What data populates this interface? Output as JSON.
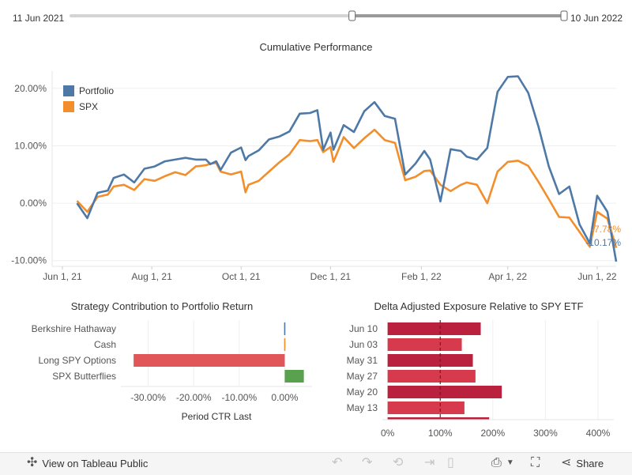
{
  "range_slider": {
    "start_label": "11 Jun 2021",
    "end_label": "10 Jun 2022",
    "selected_fraction": [
      0.57,
      1.0
    ]
  },
  "colors": {
    "portfolio": "#4e79a7",
    "spx": "#f28e2b",
    "ctr_negative": "#e15759",
    "ctr_positive": "#59a14f",
    "exposure_dark": "#b9213f",
    "exposure_light": "#d63a4c"
  },
  "chart_data": [
    {
      "type": "line",
      "title": "Cumulative Performance",
      "x_ticks": [
        "Jun 1, 21",
        "Aug 1, 21",
        "Oct 1, 21",
        "Dec 1, 21",
        "Feb 1, 22",
        "Apr 1, 22",
        "Jun 1, 22"
      ],
      "y_ticks": [
        "20.00%",
        "10.00%",
        "0.00%",
        "-10.00%"
      ],
      "ylim": [
        -11,
        23
      ],
      "xlim": [
        "2021-05-25",
        "2022-06-14"
      ],
      "legend_position": "top-left",
      "series": [
        {
          "name": "Portfolio",
          "end_label": "-10.17%",
          "points": [
            [
              "2021-06-11",
              0.0
            ],
            [
              "2021-06-18",
              -2.6
            ],
            [
              "2021-06-25",
              1.8
            ],
            [
              "2021-07-02",
              2.2
            ],
            [
              "2021-07-06",
              4.4
            ],
            [
              "2021-07-13",
              5.0
            ],
            [
              "2021-07-20",
              3.6
            ],
            [
              "2021-07-27",
              6.0
            ],
            [
              "2021-08-03",
              6.4
            ],
            [
              "2021-08-10",
              7.3
            ],
            [
              "2021-08-17",
              7.6
            ],
            [
              "2021-08-24",
              7.9
            ],
            [
              "2021-08-31",
              7.6
            ],
            [
              "2021-09-07",
              7.6
            ],
            [
              "2021-09-10",
              6.8
            ],
            [
              "2021-09-14",
              7.3
            ],
            [
              "2021-09-17",
              5.8
            ],
            [
              "2021-09-24",
              8.8
            ],
            [
              "2021-10-01",
              9.7
            ],
            [
              "2021-10-04",
              7.5
            ],
            [
              "2021-10-06",
              8.2
            ],
            [
              "2021-10-13",
              9.2
            ],
            [
              "2021-10-20",
              11.1
            ],
            [
              "2021-10-27",
              11.6
            ],
            [
              "2021-11-03",
              12.5
            ],
            [
              "2021-11-10",
              15.6
            ],
            [
              "2021-11-17",
              15.7
            ],
            [
              "2021-11-22",
              16.2
            ],
            [
              "2021-11-26",
              9.3
            ],
            [
              "2021-12-01",
              12.3
            ],
            [
              "2021-12-03",
              9.3
            ],
            [
              "2021-12-10",
              13.6
            ],
            [
              "2021-12-17",
              12.4
            ],
            [
              "2021-12-24",
              16.0
            ],
            [
              "2021-12-31",
              17.6
            ],
            [
              "2022-01-07",
              15.2
            ],
            [
              "2022-01-14",
              14.7
            ],
            [
              "2022-01-21",
              5.0
            ],
            [
              "2022-01-28",
              6.9
            ],
            [
              "2022-02-03",
              9.1
            ],
            [
              "2022-02-07",
              7.6
            ],
            [
              "2022-02-14",
              0.3
            ],
            [
              "2022-02-21",
              9.4
            ],
            [
              "2022-02-28",
              9.1
            ],
            [
              "2022-03-04",
              8.1
            ],
            [
              "2022-03-11",
              7.6
            ],
            [
              "2022-03-18",
              9.6
            ],
            [
              "2022-03-25",
              19.4
            ],
            [
              "2022-04-01",
              22.0
            ],
            [
              "2022-04-08",
              22.1
            ],
            [
              "2022-04-15",
              19.2
            ],
            [
              "2022-04-22",
              13.3
            ],
            [
              "2022-04-29",
              6.4
            ],
            [
              "2022-05-06",
              1.6
            ],
            [
              "2022-05-13",
              2.9
            ],
            [
              "2022-05-20",
              -3.7
            ],
            [
              "2022-05-27",
              -7.0
            ],
            [
              "2022-06-01",
              1.3
            ],
            [
              "2022-06-08",
              -1.5
            ],
            [
              "2022-06-14",
              -10.17
            ]
          ]
        },
        {
          "name": "SPX",
          "end_label": "-7.78%",
          "points": [
            [
              "2021-06-11",
              0.4
            ],
            [
              "2021-06-18",
              -1.5
            ],
            [
              "2021-06-25",
              1.1
            ],
            [
              "2021-07-02",
              1.5
            ],
            [
              "2021-07-06",
              2.9
            ],
            [
              "2021-07-13",
              3.2
            ],
            [
              "2021-07-20",
              2.3
            ],
            [
              "2021-07-27",
              4.2
            ],
            [
              "2021-08-03",
              3.9
            ],
            [
              "2021-08-10",
              4.7
            ],
            [
              "2021-08-17",
              5.4
            ],
            [
              "2021-08-24",
              4.9
            ],
            [
              "2021-08-31",
              6.4
            ],
            [
              "2021-09-07",
              6.6
            ],
            [
              "2021-09-10",
              6.9
            ],
            [
              "2021-09-14",
              7.0
            ],
            [
              "2021-09-17",
              5.5
            ],
            [
              "2021-09-24",
              5.0
            ],
            [
              "2021-10-01",
              5.5
            ],
            [
              "2021-10-04",
              1.9
            ],
            [
              "2021-10-06",
              3.2
            ],
            [
              "2021-10-13",
              3.9
            ],
            [
              "2021-10-20",
              5.5
            ],
            [
              "2021-10-27",
              7.1
            ],
            [
              "2021-11-03",
              8.5
            ],
            [
              "2021-11-10",
              11.0
            ],
            [
              "2021-11-17",
              10.8
            ],
            [
              "2021-11-22",
              11.0
            ],
            [
              "2021-11-26",
              8.9
            ],
            [
              "2021-12-01",
              9.8
            ],
            [
              "2021-12-03",
              7.2
            ],
            [
              "2021-12-10",
              11.5
            ],
            [
              "2021-12-17",
              9.6
            ],
            [
              "2021-12-24",
              11.3
            ],
            [
              "2021-12-31",
              12.8
            ],
            [
              "2022-01-07",
              11.0
            ],
            [
              "2022-01-14",
              10.5
            ],
            [
              "2022-01-21",
              4.0
            ],
            [
              "2022-01-28",
              4.6
            ],
            [
              "2022-02-03",
              5.6
            ],
            [
              "2022-02-07",
              5.7
            ],
            [
              "2022-02-14",
              3.2
            ],
            [
              "2022-02-21",
              2.1
            ],
            [
              "2022-02-28",
              3.2
            ],
            [
              "2022-03-04",
              3.6
            ],
            [
              "2022-03-11",
              3.2
            ],
            [
              "2022-03-18",
              0.0
            ],
            [
              "2022-03-25",
              5.5
            ],
            [
              "2022-04-01",
              7.2
            ],
            [
              "2022-04-08",
              7.4
            ],
            [
              "2022-04-15",
              6.5
            ],
            [
              "2022-04-22",
              3.7
            ],
            [
              "2022-04-29",
              0.7
            ],
            [
              "2022-05-06",
              -2.4
            ],
            [
              "2022-05-13",
              -2.5
            ],
            [
              "2022-05-20",
              -5.0
            ],
            [
              "2022-05-27",
              -7.6
            ],
            [
              "2022-06-01",
              -1.5
            ],
            [
              "2022-06-08",
              -2.7
            ],
            [
              "2022-06-14",
              -7.78
            ]
          ]
        }
      ]
    },
    {
      "type": "bar",
      "orientation": "horizontal",
      "title": "Strategy Contribution to Portfolio Return",
      "xlabel": "Period CTR Last",
      "categories": [
        "Berkshire Hathaway",
        "Cash",
        "Long SPY Options",
        "SPX Butterflies"
      ],
      "values": [
        -0.05,
        0.05,
        -33.2,
        4.2
      ],
      "x_ticks": [
        "-30.00%",
        "-20.00%",
        "-10.00%",
        "0.00%"
      ],
      "xlim": [
        -36,
        6
      ]
    },
    {
      "type": "bar",
      "orientation": "horizontal",
      "title": "Delta Adjusted Exposure Relative to SPY ETF",
      "categories": [
        "Jun 10",
        "Jun 03",
        "May 31",
        "May 27",
        "May 20",
        "May 13"
      ],
      "values": [
        177,
        141,
        162,
        167,
        217,
        146
      ],
      "partial_bar_value": 193,
      "reference_line": 100,
      "x_ticks": [
        "0%",
        "100%",
        "200%",
        "300%",
        "400%"
      ],
      "xlim": [
        -10,
        430
      ]
    }
  ],
  "footer": {
    "view_label": "View on Tableau Public",
    "share_label": "Share"
  }
}
